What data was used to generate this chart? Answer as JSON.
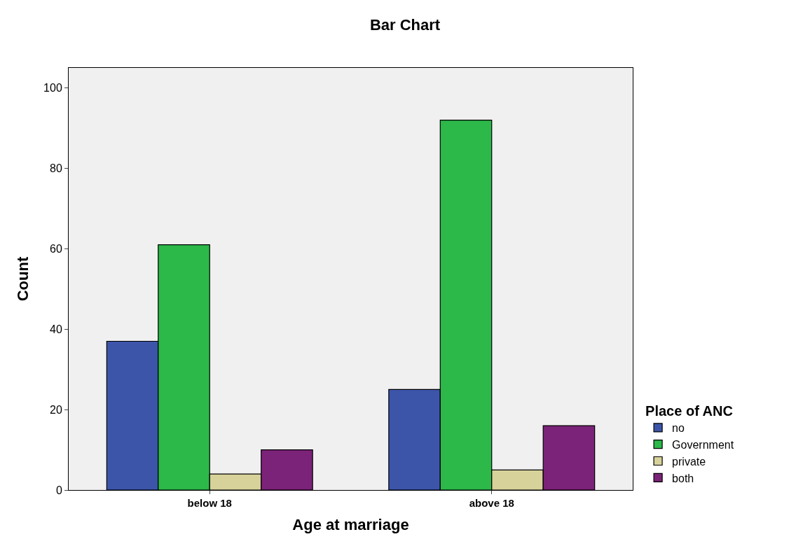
{
  "chart_data": {
    "type": "bar",
    "title": "Bar Chart",
    "xlabel": "Age at marriage",
    "ylabel": "Count",
    "legend_title": "Place of ANC",
    "categories": [
      "below 18",
      "above 18"
    ],
    "series": [
      {
        "name": "no",
        "color": "#3d55a8",
        "values": [
          37,
          25
        ]
      },
      {
        "name": "Government",
        "color": "#2db84a",
        "values": [
          61,
          92
        ]
      },
      {
        "name": "private",
        "color": "#d6d29a",
        "values": [
          4,
          5
        ]
      },
      {
        "name": "both",
        "color": "#7b2378",
        "values": [
          10,
          16
        ]
      }
    ],
    "ylim": [
      0,
      105
    ],
    "yticks": [
      0,
      20,
      40,
      60,
      80,
      100
    ],
    "grid": false,
    "legend": "bottom right"
  }
}
